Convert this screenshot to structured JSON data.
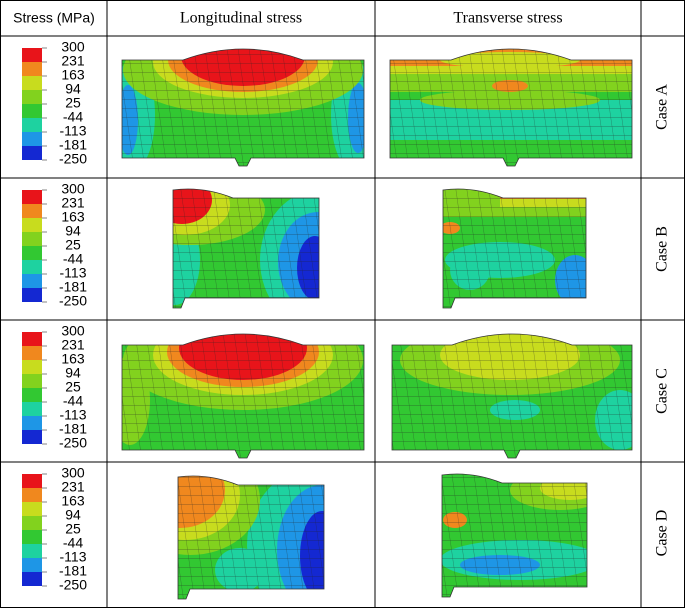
{
  "header": {
    "columns": [
      "Stress (MPa)",
      "Longitudinal stress",
      "Transverse stress"
    ]
  },
  "legend": {
    "labels": [
      "300",
      "231",
      "163",
      "94",
      "25",
      "-44",
      "-113",
      "-181",
      "-250"
    ]
  },
  "rows": [
    {
      "case": "Case A"
    },
    {
      "case": "Case B"
    },
    {
      "case": "Case C"
    },
    {
      "case": "Case D"
    }
  ]
}
